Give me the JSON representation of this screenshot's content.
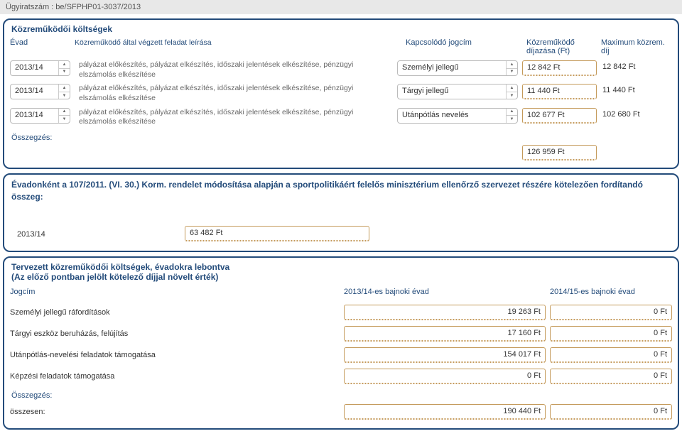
{
  "header": {
    "ugyiratszam": "Ügyiratszám : be/SFPHP01-3037/2013"
  },
  "panel1": {
    "title": "Közreműködői költségek",
    "cols": {
      "evad": "Évad",
      "desc": "Közreműködő által végzett feladat leírása",
      "jogcim": "Kapcsolódó jogcím",
      "dij": "Közreműködő díjazása (Ft)",
      "max": "Maximum közrem. díj"
    },
    "rows": [
      {
        "evad": "2013/14",
        "desc": "pályázat előkészítés, pályázat elkészítés, időszaki jelentések elkészítése, pénzügyi elszámolás elkészítése",
        "jogcim": "Személyi jellegű",
        "dij": "12 842 Ft",
        "max": "12 842 Ft"
      },
      {
        "evad": "2013/14",
        "desc": "pályázat előkészítés, pályázat elkészítés, időszaki jelentések elkészítése, pénzügyi elszámolás elkészítése",
        "jogcim": "Tárgyi jellegű",
        "dij": "11 440 Ft",
        "max": "11 440 Ft"
      },
      {
        "evad": "2013/14",
        "desc": "pályázat előkészítés, pályázat elkészítés, időszaki jelentések elkészítése, pénzügyi elszámolás elkészítése",
        "jogcim": "Utánpótlás nevelés",
        "dij": "102 677 Ft",
        "max": "102 680 Ft"
      }
    ],
    "sum_label": "Összegzés:",
    "sum_value": "126 959 Ft"
  },
  "panel2": {
    "title": "Évadonként a 107/2011. (VI. 30.) Korm. rendelet módosítása alapján a sportpolitikáért felelős minisztérium ellenőrző szervezet részére kötelezően fordítandó összeg:",
    "year": "2013/14",
    "value": "63 482 Ft"
  },
  "panel3": {
    "title1": "Tervezett közreműködői költségek, évadokra lebontva",
    "title2": "(Az előző pontban jelölt kötelező díjjal növelt érték)",
    "cols": {
      "jogcim": "Jogcím",
      "y1": "2013/14-es bajnoki évad",
      "y2": "2014/15-es bajnoki évad"
    },
    "rows": [
      {
        "label": "Személyi jellegű ráfordítások",
        "v1": "19 263 Ft",
        "v2": "0 Ft"
      },
      {
        "label": "Tárgyi eszköz beruházás, felújítás",
        "v1": "17 160 Ft",
        "v2": "0 Ft"
      },
      {
        "label": "Utánpótlás-nevelési feladatok támogatása",
        "v1": "154 017 Ft",
        "v2": "0 Ft"
      },
      {
        "label": "Képzési feladatok támogatása",
        "v1": "0 Ft",
        "v2": "0 Ft"
      }
    ],
    "sum_label": "Összegzés:",
    "total_label": "összesen:",
    "total_v1": "190 440 Ft",
    "total_v2": "0 Ft"
  },
  "colors": {
    "panel_border": "#234b7a",
    "field_border": "#c49a5a",
    "text_muted": "#666"
  }
}
